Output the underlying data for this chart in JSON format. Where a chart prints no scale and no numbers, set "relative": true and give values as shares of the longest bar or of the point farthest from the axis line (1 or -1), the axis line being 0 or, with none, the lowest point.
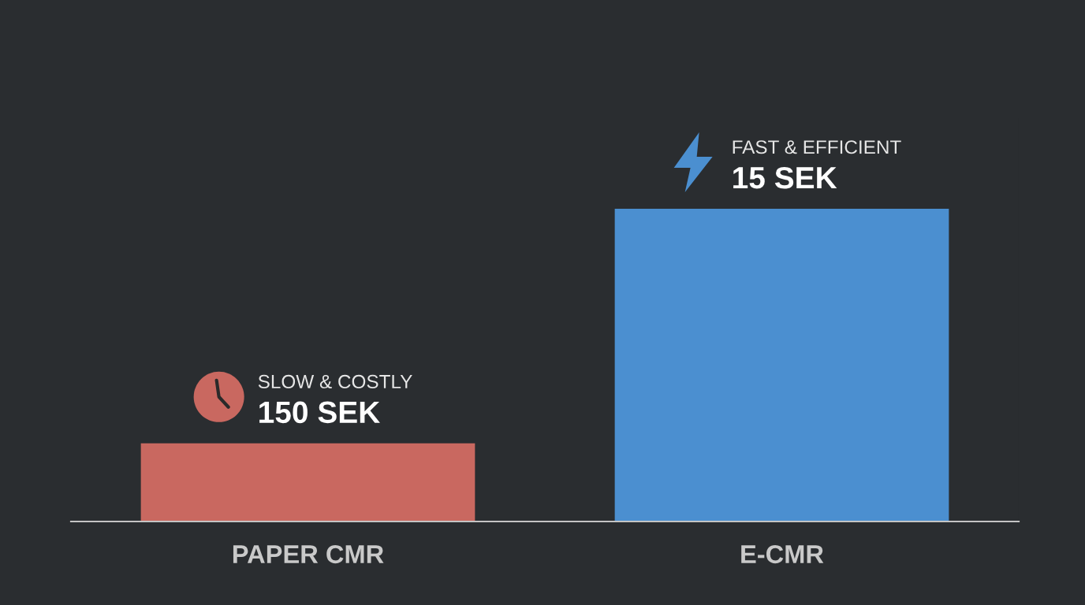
{
  "chart_data": {
    "type": "bar",
    "relative": true,
    "categories": [
      "PAPER CMR",
      "E-CMR"
    ],
    "values": [
      0.25,
      1
    ],
    "colors": [
      "#c96860",
      "#4b8fd0"
    ],
    "annotations": [
      {
        "text": "SLOW & COSTLY",
        "x": "PAPER CMR",
        "y": 0.25
      },
      {
        "text": "150 SEK",
        "x": "PAPER CMR",
        "y": 0.25
      },
      {
        "text": "FAST & EFFICIENT",
        "x": "E-CMR",
        "y": 1
      },
      {
        "text": "15 SEK",
        "x": "E-CMR",
        "y": 1
      }
    ]
  }
}
